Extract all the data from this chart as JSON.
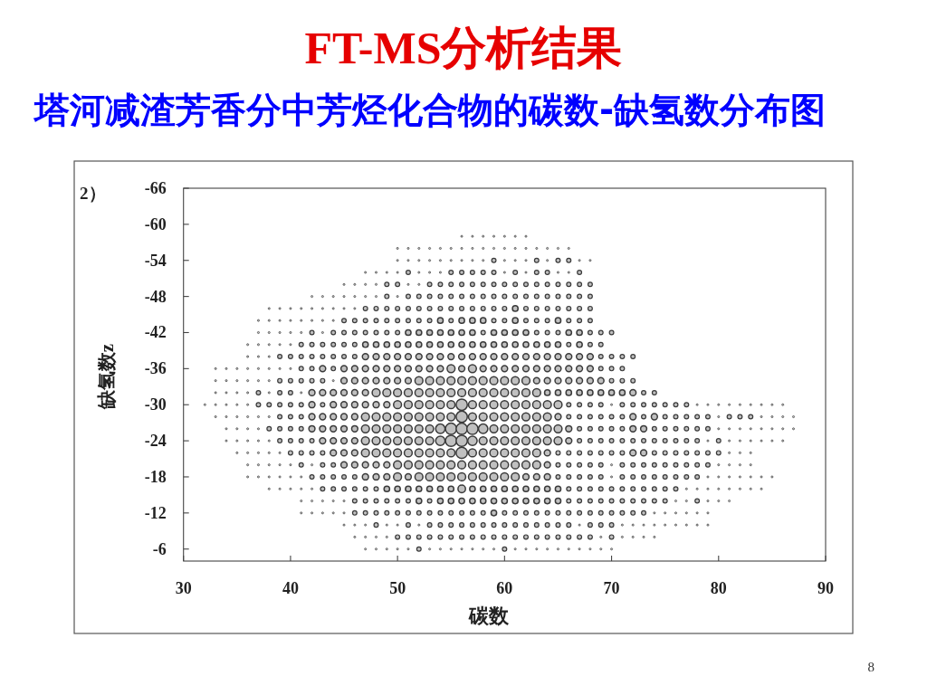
{
  "chart_data": {
    "type": "bubble",
    "title": "FT-MS分析结果",
    "subtitle": "塔河减渣芳香分中芳烃化合物的碳数-缺氢数分布图",
    "xlabel": "碳数",
    "ylabel": "缺氢数z",
    "annotations": [
      "2）",
      "8"
    ],
    "xlim": [
      30,
      90
    ],
    "xticks": [
      30,
      40,
      50,
      60,
      70,
      80,
      90
    ],
    "ylim": [
      -4,
      -66
    ],
    "yticks": [
      -66,
      -60,
      -54,
      -48,
      -42,
      -36,
      -30,
      -24,
      -18,
      -12,
      -6
    ],
    "color": "#3a3a3a",
    "x": [
      56,
      57,
      58,
      59,
      60,
      61,
      62,
      50,
      51,
      52,
      53,
      54,
      55,
      56,
      57,
      58,
      59,
      60,
      61,
      62,
      63,
      64,
      65,
      66,
      50,
      51,
      52,
      53,
      54,
      55,
      56,
      57,
      58,
      59,
      60,
      61,
      62,
      63,
      64,
      65,
      66,
      67,
      68,
      47,
      48,
      49,
      50,
      51,
      52,
      53,
      54,
      55,
      56,
      57,
      58,
      59,
      60,
      61,
      62,
      63,
      64,
      65,
      66,
      67,
      45,
      46,
      47,
      48,
      49,
      50,
      51,
      52,
      53,
      54,
      55,
      56,
      57,
      58,
      59,
      60,
      61,
      62,
      63,
      64,
      65,
      66,
      67,
      68,
      42,
      43,
      44,
      45,
      46,
      47,
      48,
      49,
      50,
      51,
      52,
      53,
      54,
      55,
      56,
      57,
      58,
      59,
      60,
      61,
      62,
      63,
      64,
      65,
      66,
      67,
      68,
      38,
      39,
      40,
      41,
      42,
      43,
      44,
      45,
      46,
      47,
      48,
      49,
      50,
      51,
      52,
      53,
      54,
      55,
      56,
      57,
      58,
      59,
      60,
      61,
      62,
      63,
      64,
      65,
      66,
      67,
      68,
      37,
      38,
      39,
      40,
      41,
      42,
      43,
      44,
      45,
      46,
      47,
      48,
      49,
      50,
      51,
      52,
      53,
      54,
      55,
      56,
      57,
      58,
      59,
      60,
      61,
      62,
      63,
      64,
      65,
      66,
      67,
      68,
      37,
      38,
      39,
      40,
      41,
      42,
      43,
      44,
      45,
      46,
      47,
      48,
      49,
      50,
      51,
      52,
      53,
      54,
      55,
      56,
      57,
      58,
      59,
      60,
      61,
      62,
      63,
      64,
      65,
      66,
      67,
      68,
      69,
      70,
      36,
      37,
      38,
      39,
      40,
      41,
      42,
      43,
      44,
      45,
      46,
      47,
      48,
      49,
      50,
      51,
      52,
      53,
      54,
      55,
      56,
      57,
      58,
      59,
      60,
      61,
      62,
      63,
      64,
      65,
      66,
      67,
      68,
      69,
      36,
      37,
      38,
      39,
      40,
      41,
      42,
      43,
      44,
      45,
      46,
      47,
      48,
      49,
      50,
      51,
      52,
      53,
      54,
      55,
      56,
      57,
      58,
      59,
      60,
      61,
      62,
      63,
      64,
      65,
      66,
      67,
      68,
      69,
      70,
      71,
      72,
      33,
      34,
      35,
      36,
      37,
      38,
      39,
      40,
      41,
      42,
      43,
      44,
      45,
      46,
      47,
      48,
      49,
      50,
      51,
      52,
      53,
      54,
      55,
      56,
      57,
      58,
      59,
      60,
      61,
      62,
      63,
      64,
      65,
      66,
      67,
      68,
      69,
      70,
      71,
      33,
      34,
      35,
      36,
      37,
      38,
      39,
      40,
      41,
      42,
      43,
      44,
      45,
      46,
      47,
      48,
      49,
      50,
      51,
      52,
      53,
      54,
      55,
      56,
      57,
      58,
      59,
      60,
      61,
      62,
      63,
      64,
      65,
      66,
      67,
      68,
      69,
      70,
      71,
      72,
      33,
      34,
      35,
      36,
      37,
      38,
      39,
      40,
      41,
      42,
      43,
      44,
      45,
      46,
      47,
      48,
      49,
      50,
      51,
      52,
      53,
      54,
      55,
      56,
      57,
      58,
      59,
      60,
      61,
      62,
      63,
      64,
      65,
      66,
      67,
      68,
      69,
      70,
      71,
      72,
      73,
      74,
      32,
      33,
      34,
      35,
      36,
      37,
      38,
      39,
      40,
      41,
      42,
      43,
      44,
      45,
      46,
      47,
      48,
      49,
      50,
      51,
      52,
      53,
      54,
      55,
      56,
      57,
      58,
      59,
      60,
      61,
      62,
      63,
      64,
      65,
      66,
      67,
      68,
      69,
      70,
      71,
      72,
      73,
      74,
      75,
      76,
      77,
      78,
      79,
      80,
      81,
      82,
      83,
      84,
      85,
      86,
      33,
      34,
      35,
      36,
      37,
      38,
      39,
      40,
      41,
      42,
      43,
      44,
      45,
      46,
      47,
      48,
      49,
      50,
      51,
      52,
      53,
      54,
      55,
      56,
      57,
      58,
      59,
      60,
      61,
      62,
      63,
      64,
      65,
      66,
      67,
      68,
      69,
      70,
      71,
      72,
      73,
      74,
      75,
      76,
      77,
      78,
      79,
      80,
      81,
      82,
      83,
      84,
      85,
      86,
      87,
      34,
      35,
      36,
      37,
      38,
      39,
      40,
      41,
      42,
      43,
      44,
      45,
      46,
      47,
      48,
      49,
      50,
      51,
      52,
      53,
      54,
      55,
      56,
      57,
      58,
      59,
      60,
      61,
      62,
      63,
      64,
      65,
      66,
      67,
      68,
      69,
      70,
      71,
      72,
      73,
      74,
      75,
      76,
      77,
      78,
      79,
      80,
      81,
      82,
      83,
      84,
      85,
      86,
      87,
      34,
      35,
      36,
      37,
      38,
      39,
      40,
      41,
      42,
      43,
      44,
      45,
      46,
      47,
      48,
      49,
      50,
      51,
      52,
      53,
      54,
      55,
      56,
      57,
      58,
      59,
      60,
      61,
      62,
      63,
      64,
      65,
      66,
      67,
      68,
      69,
      70,
      71,
      72,
      73,
      74,
      75,
      76,
      77,
      78,
      79,
      80,
      81,
      82,
      83,
      84,
      85,
      86,
      35,
      36,
      37,
      38,
      39,
      40,
      41,
      42,
      43,
      44,
      45,
      46,
      47,
      48,
      49,
      50,
      51,
      52,
      53,
      54,
      55,
      56,
      57,
      58,
      59,
      60,
      61,
      62,
      63,
      64,
      65,
      66,
      67,
      68,
      69,
      70,
      71,
      72,
      73,
      74,
      75,
      76,
      77,
      78,
      79,
      80,
      81,
      82,
      83,
      36,
      37,
      38,
      39,
      40,
      41,
      42,
      43,
      44,
      45,
      46,
      47,
      48,
      49,
      50,
      51,
      52,
      53,
      54,
      55,
      56,
      57,
      58,
      59,
      60,
      61,
      62,
      63,
      64,
      65,
      66,
      67,
      68,
      69,
      70,
      71,
      72,
      73,
      74,
      75,
      76,
      77,
      78,
      79,
      80,
      81,
      82,
      83,
      36,
      37,
      38,
      39,
      40,
      41,
      42,
      43,
      44,
      45,
      46,
      47,
      48,
      49,
      50,
      51,
      52,
      53,
      54,
      55,
      56,
      57,
      58,
      59,
      60,
      61,
      62,
      63,
      64,
      65,
      66,
      67,
      68,
      69,
      70,
      71,
      72,
      73,
      74,
      75,
      76,
      77,
      78,
      79,
      80,
      81,
      82,
      83,
      84,
      85,
      38,
      39,
      40,
      41,
      42,
      43,
      44,
      45,
      46,
      47,
      48,
      49,
      50,
      51,
      52,
      53,
      54,
      55,
      56,
      57,
      58,
      59,
      60,
      61,
      62,
      63,
      64,
      65,
      66,
      67,
      68,
      69,
      70,
      71,
      72,
      73,
      74,
      75,
      76,
      77,
      78,
      79,
      80,
      81,
      82,
      83,
      84,
      41,
      42,
      43,
      44,
      45,
      46,
      47,
      48,
      49,
      50,
      51,
      52,
      53,
      54,
      55,
      56,
      57,
      58,
      59,
      60,
      61,
      62,
      63,
      64,
      65,
      66,
      67,
      68,
      69,
      70,
      71,
      72,
      73,
      74,
      75,
      76,
      77,
      78,
      79,
      80,
      81,
      41,
      42,
      43,
      44,
      45,
      46,
      47,
      48,
      49,
      50,
      51,
      52,
      53,
      54,
      55,
      56,
      57,
      58,
      59,
      60,
      61,
      62,
      63,
      64,
      65,
      66,
      67,
      68,
      69,
      70,
      71,
      72,
      73,
      74,
      75,
      76,
      77,
      78,
      79,
      45,
      46,
      47,
      48,
      49,
      50,
      51,
      52,
      53,
      54,
      55,
      56,
      57,
      58,
      59,
      60,
      61,
      62,
      63,
      64,
      65,
      66,
      67,
      68,
      69,
      70,
      71,
      72,
      73,
      74,
      75,
      76,
      77,
      78,
      79,
      46,
      47,
      48,
      49,
      50,
      51,
      52,
      53,
      54,
      55,
      56,
      57,
      58,
      59,
      60,
      61,
      62,
      63,
      64,
      65,
      66,
      67,
      68,
      69,
      70,
      71,
      72,
      73,
      74,
      47,
      48,
      49,
      50,
      51,
      52,
      53,
      54,
      55,
      56,
      57,
      58,
      59,
      60,
      61,
      62,
      63,
      64,
      65,
      66,
      67,
      68,
      69,
      70
    ],
    "values": [
      -58,
      -58,
      -58,
      -58,
      -58,
      -58,
      -58,
      -56,
      -56,
      -56,
      -56,
      -56,
      -56,
      -56,
      -56,
      -56,
      -56,
      -56,
      -56,
      -56,
      -56,
      -56,
      -56,
      -56,
      -54,
      -54,
      -54,
      -54,
      -54,
      -54,
      -54,
      -54,
      -54,
      -54,
      -54,
      -54,
      -54,
      -54,
      -54,
      -54,
      -54,
      -54,
      -54,
      -52,
      -52,
      -52,
      -52,
      -52,
      -52,
      -52,
      -52,
      -52,
      -52,
      -52,
      -52,
      -52,
      -52,
      -52,
      -52,
      -52,
      -52,
      -52,
      -52,
      -52,
      -50,
      -50,
      -50,
      -50,
      -50,
      -50,
      -50,
      -50,
      -50,
      -50,
      -50,
      -50,
      -50,
      -50,
      -50,
      -50,
      -50,
      -50,
      -50,
      -50,
      -50,
      -50,
      -50,
      -50,
      -48,
      -48,
      -48,
      -48,
      -48,
      -48,
      -48,
      -48,
      -48,
      -48,
      -48,
      -48,
      -48,
      -48,
      -48,
      -48,
      -48,
      -48,
      -48,
      -48,
      -48,
      -48,
      -48,
      -48,
      -48,
      -48,
      -48,
      -46,
      -46,
      -46,
      -46,
      -46,
      -46,
      -46,
      -46,
      -46,
      -46,
      -46,
      -46,
      -46,
      -46,
      -46,
      -46,
      -46,
      -46,
      -46,
      -46,
      -46,
      -46,
      -46,
      -46,
      -46,
      -46,
      -46,
      -46,
      -46,
      -46,
      -46,
      -44,
      -44,
      -44,
      -44,
      -44,
      -44,
      -44,
      -44,
      -44,
      -44,
      -44,
      -44,
      -44,
      -44,
      -44,
      -44,
      -44,
      -44,
      -44,
      -44,
      -44,
      -44,
      -44,
      -44,
      -44,
      -44,
      -44,
      -44,
      -44,
      -44,
      -44,
      -44,
      -42,
      -42,
      -42,
      -42,
      -42,
      -42,
      -42,
      -42,
      -42,
      -42,
      -42,
      -42,
      -42,
      -42,
      -42,
      -42,
      -42,
      -42,
      -42,
      -42,
      -42,
      -42,
      -42,
      -42,
      -42,
      -42,
      -42,
      -42,
      -42,
      -42,
      -42,
      -42,
      -42,
      -42,
      -40,
      -40,
      -40,
      -40,
      -40,
      -40,
      -40,
      -40,
      -40,
      -40,
      -40,
      -40,
      -40,
      -40,
      -40,
      -40,
      -40,
      -40,
      -40,
      -40,
      -40,
      -40,
      -40,
      -40,
      -40,
      -40,
      -40,
      -40,
      -40,
      -40,
      -40,
      -40,
      -40,
      -40,
      -38,
      -38,
      -38,
      -38,
      -38,
      -38,
      -38,
      -38,
      -38,
      -38,
      -38,
      -38,
      -38,
      -38,
      -38,
      -38,
      -38,
      -38,
      -38,
      -38,
      -38,
      -38,
      -38,
      -38,
      -38,
      -38,
      -38,
      -38,
      -38,
      -38,
      -38,
      -38,
      -38,
      -38,
      -38,
      -38,
      -38,
      -36,
      -36,
      -36,
      -36,
      -36,
      -36,
      -36,
      -36,
      -36,
      -36,
      -36,
      -36,
      -36,
      -36,
      -36,
      -36,
      -36,
      -36,
      -36,
      -36,
      -36,
      -36,
      -36,
      -36,
      -36,
      -36,
      -36,
      -36,
      -36,
      -36,
      -36,
      -36,
      -36,
      -36,
      -36,
      -36,
      -36,
      -36,
      -36,
      -34,
      -34,
      -34,
      -34,
      -34,
      -34,
      -34,
      -34,
      -34,
      -34,
      -34,
      -34,
      -34,
      -34,
      -34,
      -34,
      -34,
      -34,
      -34,
      -34,
      -34,
      -34,
      -34,
      -34,
      -34,
      -34,
      -34,
      -34,
      -34,
      -34,
      -34,
      -34,
      -34,
      -34,
      -34,
      -34,
      -34,
      -34,
      -34,
      -34,
      -32,
      -32,
      -32,
      -32,
      -32,
      -32,
      -32,
      -32,
      -32,
      -32,
      -32,
      -32,
      -32,
      -32,
      -32,
      -32,
      -32,
      -32,
      -32,
      -32,
      -32,
      -32,
      -32,
      -32,
      -32,
      -32,
      -32,
      -32,
      -32,
      -32,
      -32,
      -32,
      -32,
      -32,
      -32,
      -32,
      -32,
      -32,
      -32,
      -32,
      -32,
      -32,
      -30,
      -30,
      -30,
      -30,
      -30,
      -30,
      -30,
      -30,
      -30,
      -30,
      -30,
      -30,
      -30,
      -30,
      -30,
      -30,
      -30,
      -30,
      -30,
      -30,
      -30,
      -30,
      -30,
      -30,
      -30,
      -30,
      -30,
      -30,
      -30,
      -30,
      -30,
      -30,
      -30,
      -30,
      -30,
      -30,
      -30,
      -30,
      -30,
      -30,
      -30,
      -30,
      -30,
      -30,
      -30,
      -30,
      -30,
      -30,
      -30,
      -30,
      -30,
      -30,
      -30,
      -30,
      -30,
      -28,
      -28,
      -28,
      -28,
      -28,
      -28,
      -28,
      -28,
      -28,
      -28,
      -28,
      -28,
      -28,
      -28,
      -28,
      -28,
      -28,
      -28,
      -28,
      -28,
      -28,
      -28,
      -28,
      -28,
      -28,
      -28,
      -28,
      -28,
      -28,
      -28,
      -28,
      -28,
      -28,
      -28,
      -28,
      -28,
      -28,
      -28,
      -28,
      -28,
      -28,
      -28,
      -28,
      -28,
      -28,
      -28,
      -28,
      -28,
      -28,
      -28,
      -28,
      -28,
      -28,
      -28,
      -28,
      -26,
      -26,
      -26,
      -26,
      -26,
      -26,
      -26,
      -26,
      -26,
      -26,
      -26,
      -26,
      -26,
      -26,
      -26,
      -26,
      -26,
      -26,
      -26,
      -26,
      -26,
      -26,
      -26,
      -26,
      -26,
      -26,
      -26,
      -26,
      -26,
      -26,
      -26,
      -26,
      -26,
      -26,
      -26,
      -26,
      -26,
      -26,
      -26,
      -26,
      -26,
      -26,
      -26,
      -26,
      -26,
      -26,
      -26,
      -26,
      -26,
      -26,
      -26,
      -26,
      -26,
      -26,
      -24,
      -24,
      -24,
      -24,
      -24,
      -24,
      -24,
      -24,
      -24,
      -24,
      -24,
      -24,
      -24,
      -24,
      -24,
      -24,
      -24,
      -24,
      -24,
      -24,
      -24,
      -24,
      -24,
      -24,
      -24,
      -24,
      -24,
      -24,
      -24,
      -24,
      -24,
      -24,
      -24,
      -24,
      -24,
      -24,
      -24,
      -24,
      -24,
      -24,
      -24,
      -24,
      -24,
      -24,
      -24,
      -24,
      -24,
      -24,
      -24,
      -24,
      -24,
      -24,
      -24,
      -22,
      -22,
      -22,
      -22,
      -22,
      -22,
      -22,
      -22,
      -22,
      -22,
      -22,
      -22,
      -22,
      -22,
      -22,
      -22,
      -22,
      -22,
      -22,
      -22,
      -22,
      -22,
      -22,
      -22,
      -22,
      -22,
      -22,
      -22,
      -22,
      -22,
      -22,
      -22,
      -22,
      -22,
      -22,
      -22,
      -22,
      -22,
      -22,
      -22,
      -22,
      -22,
      -22,
      -22,
      -22,
      -22,
      -22,
      -22,
      -22,
      -20,
      -20,
      -20,
      -20,
      -20,
      -20,
      -20,
      -20,
      -20,
      -20,
      -20,
      -20,
      -20,
      -20,
      -20,
      -20,
      -20,
      -20,
      -20,
      -20,
      -20,
      -20,
      -20,
      -20,
      -20,
      -20,
      -20,
      -20,
      -20,
      -20,
      -20,
      -20,
      -20,
      -20,
      -20,
      -20,
      -20,
      -20,
      -20,
      -20,
      -20,
      -20,
      -20,
      -20,
      -20,
      -20,
      -20,
      -20,
      -18,
      -18,
      -18,
      -18,
      -18,
      -18,
      -18,
      -18,
      -18,
      -18,
      -18,
      -18,
      -18,
      -18,
      -18,
      -18,
      -18,
      -18,
      -18,
      -18,
      -18,
      -18,
      -18,
      -18,
      -18,
      -18,
      -18,
      -18,
      -18,
      -18,
      -18,
      -18,
      -18,
      -18,
      -18,
      -18,
      -18,
      -18,
      -18,
      -18,
      -18,
      -18,
      -18,
      -18,
      -18,
      -18,
      -18,
      -18,
      -18,
      -18,
      -16,
      -16,
      -16,
      -16,
      -16,
      -16,
      -16,
      -16,
      -16,
      -16,
      -16,
      -16,
      -16,
      -16,
      -16,
      -16,
      -16,
      -16,
      -16,
      -16,
      -16,
      -16,
      -16,
      -16,
      -16,
      -16,
      -16,
      -16,
      -16,
      -16,
      -16,
      -16,
      -16,
      -16,
      -16,
      -16,
      -16,
      -16,
      -16,
      -16,
      -16,
      -16,
      -16,
      -16,
      -16,
      -16,
      -16,
      -14,
      -14,
      -14,
      -14,
      -14,
      -14,
      -14,
      -14,
      -14,
      -14,
      -14,
      -14,
      -14,
      -14,
      -14,
      -14,
      -14,
      -14,
      -14,
      -14,
      -14,
      -14,
      -14,
      -14,
      -14,
      -14,
      -14,
      -14,
      -14,
      -14,
      -14,
      -14,
      -14,
      -14,
      -14,
      -14,
      -14,
      -14,
      -14,
      -14,
      -14,
      -12,
      -12,
      -12,
      -12,
      -12,
      -12,
      -12,
      -12,
      -12,
      -12,
      -12,
      -12,
      -12,
      -12,
      -12,
      -12,
      -12,
      -12,
      -12,
      -12,
      -12,
      -12,
      -12,
      -12,
      -12,
      -12,
      -12,
      -12,
      -12,
      -12,
      -12,
      -12,
      -12,
      -12,
      -12,
      -12,
      -12,
      -12,
      -12,
      -10,
      -10,
      -10,
      -10,
      -10,
      -10,
      -10,
      -10,
      -10,
      -10,
      -10,
      -10,
      -10,
      -10,
      -10,
      -10,
      -10,
      -10,
      -10,
      -10,
      -10,
      -10,
      -10,
      -10,
      -10,
      -10,
      -10,
      -10,
      -10,
      -10,
      -10,
      -10,
      -10,
      -10,
      -10,
      -8,
      -8,
      -8,
      -8,
      -8,
      -8,
      -8,
      -8,
      -8,
      -8,
      -8,
      -8,
      -8,
      -8,
      -8,
      -8,
      -8,
      -8,
      -8,
      -8,
      -8,
      -8,
      -8,
      -8,
      -8,
      -8,
      -8,
      -8,
      -8,
      -6,
      -6,
      -6,
      -6,
      -6,
      -6,
      -6,
      -6,
      -6,
      -6,
      -6,
      -6,
      -6,
      -6,
      -6,
      -6,
      -6,
      -6,
      -6,
      -6,
      -6,
      -6,
      -6,
      -6
    ],
    "sizes": [
      0.03,
      0.03,
      0.03,
      0.03,
      0.03,
      0.03,
      0.03,
      0.03,
      0.03,
      0.03,
      0.03,
      0.03,
      0.03,
      0.03,
      0.03,
      0.03,
      0.03,
      0.03,
      0.03,
      0.03,
      0.03,
      0.03,
      0.03,
      0.03,
      0.03,
      0.03,
      0.03,
      0.03,
      0.03,
      0.03,
      0.03,
      0.03,
      0.03,
      0.15,
      0.03,
      0.03,
      0.03,
      0.15,
      0.03,
      0.15,
      0.15,
      0.03,
      0.03,
      0.03,
      0.03,
      0.03,
      0.03,
      0.15,
      0.03,
      0.03,
      0.03,
      0.15,
      0.15,
      0.15,
      0.15,
      0.15,
      0.03,
      0.15,
      0.03,
      0.15,
      0.15,
      0.03,
      0.03,
      0.15,
      0.03,
      0.03,
      0.03,
      0.03,
      0.15,
      0.15,
      0.03,
      0.03,
      0.15,
      0.15,
      0.15,
      0.15,
      0.15,
      0.15,
      0.15,
      0.15,
      0.15,
      0.15,
      0.15,
      0.15,
      0.15,
      0.15,
      0.15,
      0.15,
      0.03,
      0.03,
      0.03,
      0.03,
      0.03,
      0.03,
      0.03,
      0.15,
      0.03,
      0.15,
      0.15,
      0.15,
      0.15,
      0.15,
      0.15,
      0.15,
      0.15,
      0.15,
      0.15,
      0.15,
      0.15,
      0.15,
      0.15,
      0.15,
      0.15,
      0.15,
      0.15,
      0.03,
      0.03,
      0.03,
      0.03,
      0.03,
      0.03,
      0.03,
      0.03,
      0.03,
      0.15,
      0.15,
      0.15,
      0.15,
      0.15,
      0.15,
      0.15,
      0.15,
      0.15,
      0.15,
      0.15,
      0.15,
      0.15,
      0.15,
      0.25,
      0.15,
      0.15,
      0.15,
      0.15,
      0.15,
      0.15,
      0.15,
      0.03,
      0.03,
      0.03,
      0.03,
      0.03,
      0.03,
      0.03,
      0.03,
      0.15,
      0.15,
      0.15,
      0.15,
      0.15,
      0.15,
      0.15,
      0.15,
      0.15,
      0.25,
      0.15,
      0.25,
      0.25,
      0.25,
      0.15,
      0.15,
      0.25,
      0.15,
      0.15,
      0.15,
      0.25,
      0.15,
      0.15,
      0.15,
      0.03,
      0.03,
      0.03,
      0.03,
      0.03,
      0.15,
      0.03,
      0.15,
      0.15,
      0.15,
      0.15,
      0.15,
      0.15,
      0.15,
      0.25,
      0.25,
      0.25,
      0.25,
      0.25,
      0.25,
      0.25,
      0.15,
      0.25,
      0.25,
      0.25,
      0.25,
      0.15,
      0.15,
      0.15,
      0.25,
      0.25,
      0.15,
      0.15,
      0.15,
      0.03,
      0.03,
      0.03,
      0.03,
      0.03,
      0.15,
      0.15,
      0.15,
      0.15,
      0.15,
      0.15,
      0.25,
      0.25,
      0.25,
      0.25,
      0.25,
      0.25,
      0.25,
      0.25,
      0.25,
      0.25,
      0.25,
      0.25,
      0.25,
      0.25,
      0.25,
      0.25,
      0.25,
      0.25,
      0.25,
      0.15,
      0.25,
      0.15,
      0.15,
      0.03,
      0.03,
      0.03,
      0.15,
      0.15,
      0.15,
      0.15,
      0.15,
      0.15,
      0.15,
      0.15,
      0.3,
      0.3,
      0.3,
      0.3,
      0.3,
      0.3,
      0.3,
      0.3,
      0.3,
      0.3,
      0.3,
      0.3,
      0.3,
      0.3,
      0.3,
      0.3,
      0.3,
      0.3,
      0.3,
      0.3,
      0.3,
      0.3,
      0.15,
      0.15,
      0.15,
      0.15,
      0.03,
      0.03,
      0.03,
      0.03,
      0.03,
      0.03,
      0.03,
      0.03,
      0.15,
      0.15,
      0.3,
      0.15,
      0.3,
      0.3,
      0.3,
      0.3,
      0.3,
      0.3,
      0.3,
      0.3,
      0.3,
      0.3,
      0.5,
      0.3,
      0.5,
      0.3,
      0.3,
      0.3,
      0.3,
      0.3,
      0.3,
      0.3,
      0.3,
      0.3,
      0.3,
      0.3,
      0.15,
      0.15,
      0.15,
      0.03,
      0.03,
      0.03,
      0.03,
      0.03,
      0.03,
      0.15,
      0.15,
      0.15,
      0.15,
      0.15,
      0.03,
      0.3,
      0.3,
      0.3,
      0.3,
      0.3,
      0.3,
      0.3,
      0.5,
      0.5,
      0.5,
      0.5,
      0.5,
      0.5,
      0.5,
      0.5,
      0.5,
      0.5,
      0.5,
      0.3,
      0.3,
      0.3,
      0.3,
      0.3,
      0.3,
      0.3,
      0.15,
      0.15,
      0.15,
      0.03,
      0.03,
      0.03,
      0.03,
      0.15,
      0.03,
      0.15,
      0.15,
      0.03,
      0.3,
      0.3,
      0.3,
      0.3,
      0.3,
      0.3,
      0.5,
      0.5,
      0.5,
      0.5,
      0.5,
      0.5,
      0.5,
      0.5,
      0.5,
      0.5,
      0.5,
      0.5,
      0.5,
      0.5,
      0.5,
      0.5,
      0.25,
      0.25,
      0.25,
      0.25,
      0.25,
      0.25,
      0.25,
      0.25,
      0.3,
      0.15,
      0.15,
      0.03,
      0.03,
      0.03,
      0.03,
      0.03,
      0.15,
      0.15,
      0.15,
      0.15,
      0.15,
      0.3,
      0.15,
      0.3,
      0.3,
      0.3,
      0.3,
      0.3,
      0.3,
      0.5,
      0.5,
      0.5,
      0.5,
      0.5,
      0.5,
      1,
      0.5,
      0.5,
      0.5,
      0.5,
      0.5,
      0.5,
      0.5,
      0.5,
      0.5,
      0.15,
      0.15,
      0.15,
      0.15,
      0.03,
      0.15,
      0.15,
      0.15,
      0.15,
      0.15,
      0.15,
      0.15,
      0.03,
      0.03,
      0.03,
      0.03,
      0.03,
      0.03,
      0.03,
      0.03,
      0.03,
      0.03,
      0.03,
      0.03,
      0.03,
      0.03,
      0.03,
      0.15,
      0.15,
      0.15,
      0.3,
      0.3,
      0.3,
      0.3,
      0.3,
      0.5,
      0.5,
      0.5,
      0.5,
      0.5,
      0.5,
      0.5,
      0.5,
      0.5,
      1,
      0.5,
      0.5,
      0.5,
      0.5,
      0.5,
      0.5,
      0.5,
      0.5,
      0.3,
      0.15,
      0.15,
      0.15,
      0.15,
      0.15,
      0.15,
      0.3,
      0.15,
      0.3,
      0.15,
      0.15,
      0.15,
      0.15,
      0.15,
      0.03,
      0.15,
      0.15,
      0.15,
      0.03,
      0.03,
      0.03,
      0.03,
      0.03,
      0.03,
      0.03,
      0.03,
      0.15,
      0.15,
      0.15,
      0.15,
      0.3,
      0.3,
      0.3,
      0.3,
      0.3,
      0.5,
      0.5,
      0.5,
      0.5,
      0.5,
      0.5,
      0.5,
      0.7,
      1,
      1,
      1,
      0.7,
      0.5,
      0.5,
      0.5,
      0.5,
      0.5,
      0.5,
      0.5,
      0.3,
      0.15,
      0.15,
      0.15,
      0.15,
      0.15,
      0.3,
      0.3,
      0.15,
      0.15,
      0.15,
      0.15,
      0.15,
      0.15,
      0.03,
      0.03,
      0.03,
      0.03,
      0.03,
      0.03,
      0.03,
      0.03,
      0.03,
      0.03,
      0.03,
      0.03,
      0.03,
      0.15,
      0.15,
      0.15,
      0.15,
      0.3,
      0.3,
      0.3,
      0.3,
      0.5,
      0.5,
      0.5,
      0.5,
      0.5,
      0.5,
      0.5,
      0.7,
      1,
      1,
      0.7,
      0.5,
      0.5,
      0.5,
      0.5,
      0.5,
      0.5,
      0.5,
      0.5,
      0.3,
      0.15,
      0.15,
      0.15,
      0.15,
      0.15,
      0.15,
      0.15,
      0.15,
      0.15,
      0.15,
      0.15,
      0.15,
      0.03,
      0.15,
      0.03,
      0.03,
      0.03,
      0.03,
      0.03,
      0.03,
      0.03,
      0.03,
      0.03,
      0.03,
      0.03,
      0.15,
      0.15,
      0.15,
      0.15,
      0.3,
      0.3,
      0.3,
      0.5,
      0.5,
      0.5,
      0.5,
      0.5,
      0.5,
      0.5,
      0.5,
      0.5,
      1,
      0.5,
      0.5,
      0.5,
      0.5,
      0.5,
      0.5,
      0.5,
      0.3,
      0.15,
      0.15,
      0.15,
      0.15,
      0.15,
      0.15,
      0.15,
      0.3,
      0.3,
      0.15,
      0.15,
      0.15,
      0.15,
      0.15,
      0.15,
      0.15,
      0.03,
      0.03,
      0.03,
      0.03,
      0.03,
      0.03,
      0.03,
      0.03,
      0.15,
      0.03,
      0.15,
      0.15,
      0.3,
      0.3,
      0.3,
      0.3,
      0.3,
      0.5,
      0.5,
      0.5,
      0.5,
      0.5,
      0.5,
      0.5,
      0.5,
      0.5,
      0.5,
      0.5,
      0.5,
      0.5,
      0.5,
      0.3,
      0.15,
      0.15,
      0.15,
      0.15,
      0.15,
      0.03,
      0.15,
      0.15,
      0.15,
      0.15,
      0.15,
      0.15,
      0.15,
      0.15,
      0.15,
      0.03,
      0.03,
      0.03,
      0.03,
      0.03,
      0.03,
      0.03,
      0.03,
      0.03,
      0.03,
      0.15,
      0.15,
      0.15,
      0.15,
      0.15,
      0.3,
      0.3,
      0.3,
      0.5,
      0.3,
      0.5,
      0.5,
      0.5,
      0.5,
      0.5,
      0.5,
      0.5,
      0.5,
      0.5,
      0.5,
      0.3,
      0.3,
      0.3,
      0.15,
      0.15,
      0.15,
      0.15,
      0.15,
      0.03,
      0.15,
      0.15,
      0.15,
      0.15,
      0.15,
      0.15,
      0.15,
      0.15,
      0.03,
      0.03,
      0.03,
      0.03,
      0.03,
      0.03,
      0.03,
      0.03,
      0.03,
      0.03,
      0.03,
      0.03,
      0.15,
      0.15,
      0.15,
      0.15,
      0.15,
      0.15,
      0.25,
      0.25,
      0.25,
      0.25,
      0.25,
      0.25,
      0.25,
      0.45,
      0.25,
      0.25,
      0.25,
      0.25,
      0.25,
      0.25,
      0.25,
      0.25,
      0.25,
      0.15,
      0.15,
      0.15,
      0.15,
      0.15,
      0.15,
      0.15,
      0.15,
      0.15,
      0.15,
      0.15,
      0.03,
      0.03,
      0.03,
      0.03,
      0.03,
      0.03,
      0.03,
      0.03,
      0.03,
      0.03,
      0.03,
      0.03,
      0.03,
      0.15,
      0.15,
      0.15,
      0.15,
      0.15,
      0.15,
      0.25,
      0.15,
      0.25,
      0.25,
      0.25,
      0.25,
      0.25,
      0.25,
      0.25,
      0.25,
      0.25,
      0.25,
      0.25,
      0.25,
      0.15,
      0.15,
      0.15,
      0.15,
      0.15,
      0.15,
      0.15,
      0.15,
      0.15,
      0.15,
      0.03,
      0.03,
      0.15,
      0.03,
      0.03,
      0.03,
      0.03,
      0.03,
      0.03,
      0.03,
      0.03,
      0.15,
      0.15,
      0.15,
      0.15,
      0.15,
      0.15,
      0.15,
      0.15,
      0.15,
      0.15,
      0.15,
      0.15,
      0.15,
      0.25,
      0.15,
      0.15,
      0.15,
      0.15,
      0.15,
      0.15,
      0.15,
      0.15,
      0.15,
      0.15,
      0.15,
      0.15,
      0.15,
      0.15,
      0.03,
      0.03,
      0.03,
      0.03,
      0.03,
      0.03,
      0.03,
      0.03,
      0.03,
      0.15,
      0.03,
      0.03,
      0.15,
      0.03,
      0.15,
      0.15,
      0.15,
      0.15,
      0.15,
      0.15,
      0.15,
      0.15,
      0.15,
      0.15,
      0.15,
      0.15,
      0.15,
      0.15,
      0.03,
      0.15,
      0.15,
      0.15,
      0.03,
      0.03,
      0.03,
      0.03,
      0.03,
      0.03,
      0.03,
      0.03,
      0.03,
      0.03,
      0.03,
      0.03,
      0.03,
      0.15,
      0.15,
      0.15,
      0.15,
      0.15,
      0.15,
      0.15,
      0.15,
      0.15,
      0.15,
      0.15,
      0.15,
      0.15,
      0.15,
      0.15,
      0.15,
      0.15,
      0.15,
      0.15,
      0.03,
      0.15,
      0.03,
      0.03,
      0.03,
      0.03,
      0.03,
      0.03,
      0.03,
      0.03,
      0.03,
      0.15,
      0.03,
      0.03,
      0.03,
      0.03,
      0.03,
      0.03,
      0.03,
      0.15,
      0.03,
      0.03,
      0.03,
      0.03,
      0.03,
      0.03,
      0.03,
      0.03,
      0.03,
      0.03
    ]
  }
}
